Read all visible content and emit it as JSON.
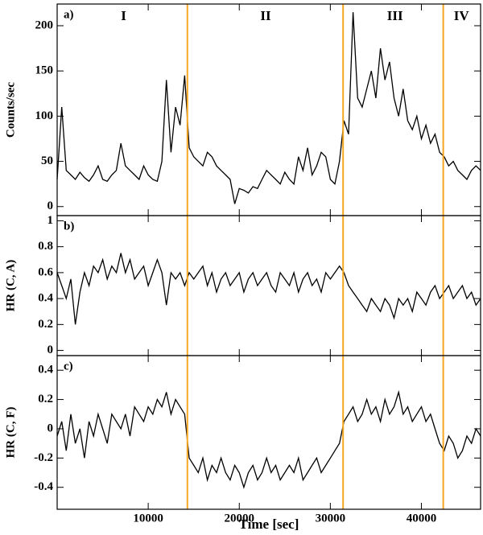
{
  "chart_data": [
    {
      "type": "line",
      "label": "a)",
      "ylabel": "Counts/sec",
      "color": "#000000",
      "x": [
        0,
        500,
        1000,
        1500,
        2000,
        2500,
        3000,
        3500,
        4000,
        4500,
        5000,
        5500,
        6000,
        6500,
        7000,
        7500,
        8000,
        8500,
        9000,
        9500,
        10000,
        10500,
        11000,
        11500,
        12000,
        12500,
        13000,
        13500,
        14000,
        14500,
        15000,
        15500,
        16000,
        16500,
        17000,
        17500,
        18000,
        18500,
        19000,
        19500,
        20000,
        20500,
        21000,
        21500,
        22000,
        22500,
        23000,
        23500,
        24000,
        24500,
        25000,
        25500,
        26000,
        26500,
        27000,
        27500,
        28000,
        28500,
        29000,
        29500,
        30000,
        30500,
        31000,
        31500,
        32000,
        32500,
        33000,
        33500,
        34000,
        34500,
        35000,
        35500,
        36000,
        36500,
        37000,
        37500,
        38000,
        38500,
        39000,
        39500,
        40000,
        40500,
        41000,
        41500,
        42000,
        42500,
        43000,
        43500,
        44000,
        44500,
        45000,
        45500,
        46000,
        46500
      ],
      "values": [
        30,
        110,
        40,
        35,
        30,
        38,
        32,
        28,
        35,
        45,
        30,
        28,
        35,
        40,
        70,
        45,
        40,
        35,
        30,
        45,
        35,
        30,
        28,
        50,
        140,
        60,
        110,
        90,
        145,
        65,
        55,
        50,
        45,
        60,
        55,
        45,
        40,
        35,
        30,
        3,
        20,
        18,
        15,
        22,
        20,
        30,
        40,
        35,
        30,
        25,
        38,
        30,
        25,
        55,
        40,
        65,
        35,
        45,
        60,
        55,
        30,
        25,
        50,
        95,
        80,
        215,
        120,
        110,
        130,
        150,
        120,
        175,
        140,
        160,
        120,
        100,
        130,
        95,
        85,
        100,
        75,
        90,
        70,
        80,
        60,
        55,
        45,
        50,
        40,
        35,
        30,
        40,
        45,
        40
      ],
      "xlim": [
        0,
        46500
      ],
      "ylim": [
        -10,
        224
      ],
      "yticks": [
        0,
        50,
        100,
        150,
        200
      ],
      "vlines": [
        14300,
        31400,
        42400
      ],
      "vline_color": "#f5a623",
      "annotations": [
        {
          "text": "I",
          "x": 7300
        },
        {
          "text": "II",
          "x": 22900
        },
        {
          "text": "III",
          "x": 37100
        },
        {
          "text": "IV",
          "x": 44400
        }
      ]
    },
    {
      "type": "line",
      "label": "b)",
      "ylabel": "HR (C, A)",
      "color": "#000000",
      "x": [
        0,
        500,
        1000,
        1500,
        2000,
        2500,
        3000,
        3500,
        4000,
        4500,
        5000,
        5500,
        6000,
        6500,
        7000,
        7500,
        8000,
        8500,
        9000,
        9500,
        10000,
        10500,
        11000,
        11500,
        12000,
        12500,
        13000,
        13500,
        14000,
        14500,
        15000,
        15500,
        16000,
        16500,
        17000,
        17500,
        18000,
        18500,
        19000,
        19500,
        20000,
        20500,
        21000,
        21500,
        22000,
        22500,
        23000,
        23500,
        24000,
        24500,
        25000,
        25500,
        26000,
        26500,
        27000,
        27500,
        28000,
        28500,
        29000,
        29500,
        30000,
        30500,
        31000,
        31500,
        32000,
        32500,
        33000,
        33500,
        34000,
        34500,
        35000,
        35500,
        36000,
        36500,
        37000,
        37500,
        38000,
        38500,
        39000,
        39500,
        40000,
        40500,
        41000,
        41500,
        42000,
        42500,
        43000,
        43500,
        44000,
        44500,
        45000,
        45500,
        46000,
        46500
      ],
      "values": [
        0.6,
        0.5,
        0.4,
        0.55,
        0.2,
        0.45,
        0.6,
        0.5,
        0.65,
        0.6,
        0.7,
        0.55,
        0.65,
        0.6,
        0.75,
        0.6,
        0.7,
        0.55,
        0.6,
        0.65,
        0.5,
        0.6,
        0.7,
        0.6,
        0.35,
        0.6,
        0.55,
        0.6,
        0.5,
        0.6,
        0.55,
        0.6,
        0.65,
        0.5,
        0.6,
        0.45,
        0.55,
        0.6,
        0.5,
        0.55,
        0.6,
        0.45,
        0.55,
        0.6,
        0.5,
        0.55,
        0.6,
        0.5,
        0.45,
        0.6,
        0.55,
        0.5,
        0.6,
        0.45,
        0.55,
        0.6,
        0.5,
        0.55,
        0.45,
        0.6,
        0.55,
        0.6,
        0.65,
        0.6,
        0.5,
        0.45,
        0.4,
        0.35,
        0.3,
        0.4,
        0.35,
        0.3,
        0.4,
        0.35,
        0.25,
        0.4,
        0.35,
        0.4,
        0.3,
        0.45,
        0.4,
        0.35,
        0.45,
        0.5,
        0.4,
        0.45,
        0.5,
        0.4,
        0.45,
        0.5,
        0.4,
        0.45,
        0.35,
        0.4
      ],
      "xlim": [
        0,
        46500
      ],
      "ylim": [
        -0.04,
        1.04
      ],
      "yticks": [
        0,
        0.2,
        0.4,
        0.6,
        0.8,
        1
      ],
      "vlines": [
        14300,
        31400,
        42400
      ],
      "vline_color": "#f5a623"
    },
    {
      "type": "line",
      "label": "c)",
      "ylabel": "HR (C, F)",
      "xlabel": "Time [sec]",
      "color": "#000000",
      "x": [
        0,
        500,
        1000,
        1500,
        2000,
        2500,
        3000,
        3500,
        4000,
        4500,
        5000,
        5500,
        6000,
        6500,
        7000,
        7500,
        8000,
        8500,
        9000,
        9500,
        10000,
        10500,
        11000,
        11500,
        12000,
        12500,
        13000,
        13500,
        14000,
        14500,
        15000,
        15500,
        16000,
        16500,
        17000,
        17500,
        18000,
        18500,
        19000,
        19500,
        20000,
        20500,
        21000,
        21500,
        22000,
        22500,
        23000,
        23500,
        24000,
        24500,
        25000,
        25500,
        26000,
        26500,
        27000,
        27500,
        28000,
        28500,
        29000,
        29500,
        30000,
        30500,
        31000,
        31500,
        32000,
        32500,
        33000,
        33500,
        34000,
        34500,
        35000,
        35500,
        36000,
        36500,
        37000,
        37500,
        38000,
        38500,
        39000,
        39500,
        40000,
        40500,
        41000,
        41500,
        42000,
        42500,
        43000,
        43500,
        44000,
        44500,
        45000,
        45500,
        46000,
        46500
      ],
      "values": [
        -0.05,
        0.05,
        -0.15,
        0.1,
        -0.1,
        0,
        -0.2,
        0.05,
        -0.05,
        0.1,
        0,
        -0.1,
        0.1,
        0.05,
        0,
        0.1,
        -0.05,
        0.15,
        0.1,
        0.05,
        0.15,
        0.1,
        0.2,
        0.15,
        0.25,
        0.1,
        0.2,
        0.15,
        0.1,
        -0.2,
        -0.25,
        -0.3,
        -0.2,
        -0.35,
        -0.25,
        -0.3,
        -0.2,
        -0.3,
        -0.35,
        -0.25,
        -0.3,
        -0.4,
        -0.3,
        -0.25,
        -0.35,
        -0.3,
        -0.2,
        -0.3,
        -0.25,
        -0.35,
        -0.3,
        -0.25,
        -0.3,
        -0.2,
        -0.35,
        -0.3,
        -0.25,
        -0.2,
        -0.3,
        -0.25,
        -0.2,
        -0.15,
        -0.1,
        0.05,
        0.1,
        0.15,
        0.05,
        0.1,
        0.2,
        0.1,
        0.15,
        0.05,
        0.2,
        0.1,
        0.15,
        0.25,
        0.1,
        0.15,
        0.05,
        0.1,
        0.15,
        0.05,
        0.1,
        0,
        -0.1,
        -0.15,
        -0.05,
        -0.1,
        -0.2,
        -0.15,
        -0.05,
        -0.1,
        0,
        -0.05
      ],
      "xlim": [
        0,
        46500
      ],
      "ylim": [
        -0.55,
        0.5
      ],
      "yticks": [
        -0.4,
        -0.2,
        0,
        0.2,
        0.4
      ],
      "xticks": [
        10000,
        20000,
        30000,
        40000
      ],
      "vlines": [
        14300,
        31400,
        42400
      ],
      "vline_color": "#f5a623"
    }
  ]
}
